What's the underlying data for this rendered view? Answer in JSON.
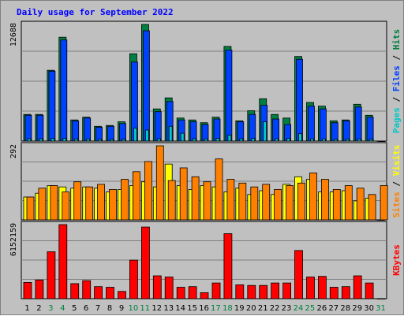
{
  "chart_data": {
    "type": "bar",
    "title": "Daily usage for September 2022",
    "categories": [
      "1",
      "2",
      "3",
      "4",
      "5",
      "6",
      "7",
      "8",
      "9",
      "10",
      "11",
      "12",
      "13",
      "14",
      "15",
      "16",
      "17",
      "18",
      "19",
      "20",
      "21",
      "22",
      "23",
      "24",
      "25",
      "26",
      "27",
      "28",
      "29",
      "30",
      "31"
    ],
    "weekend_days": [
      "3",
      "4",
      "10",
      "11",
      "17",
      "18",
      "24",
      "25",
      "31"
    ],
    "grid": true,
    "panels": [
      {
        "name": "hits-files-pages",
        "axis_label_parts": [
          "Pages",
          "Files",
          "Hits"
        ],
        "axis_label_colors": [
          "#00c8c8",
          "#0040ff",
          "#008040"
        ],
        "ymax": 12688,
        "ymax_label": "12688",
        "series": [
          {
            "name": "Hits",
            "color": "#008040",
            "values": [
              2900,
              2900,
              7700,
              11300,
              2300,
              2600,
              1600,
              1700,
              2100,
              9500,
              12688,
              3500,
              4700,
              2500,
              2300,
              2000,
              2600,
              10300,
              2200,
              3300,
              4600,
              2900,
              2500,
              9200,
              4200,
              3800,
              2200,
              2300,
              4000,
              2800,
              0
            ]
          },
          {
            "name": "Files",
            "color": "#0040ff",
            "values": [
              2800,
              2800,
              7600,
              11000,
              2200,
              2500,
              1500,
              1600,
              1900,
              8600,
              12000,
              3200,
              4300,
              2300,
              2100,
              1800,
              2400,
              9900,
              2100,
              2900,
              3900,
              2400,
              1800,
              8900,
              3800,
              3500,
              2000,
              2200,
              3700,
              2600,
              0
            ]
          },
          {
            "name": "Pages",
            "color": "#00c8c8",
            "values": [
              250,
              250,
              280,
              280,
              230,
              230,
              180,
              180,
              200,
              1400,
              1200,
              250,
              1600,
              850,
              250,
              220,
              300,
              650,
              250,
              300,
              2100,
              250,
              280,
              800,
              250,
              230,
              180,
              200,
              220,
              200,
              0
            ]
          }
        ]
      },
      {
        "name": "visits-sites",
        "axis_label_parts": [
          "Sites",
          "Visits"
        ],
        "axis_label_colors": [
          "#ff8000",
          "#ffff00"
        ],
        "ymax": 292,
        "ymax_label": "292",
        "series": [
          {
            "name": "Visits",
            "color": "#ffff00",
            "values": [
              90,
              105,
              135,
              130,
              125,
              130,
              125,
              110,
              120,
              135,
              150,
              130,
              220,
              135,
              120,
              135,
              130,
              110,
              125,
              100,
              115,
              100,
              140,
              170,
              160,
              110,
              110,
              115,
              75,
              85,
              0
            ]
          },
          {
            "name": "Sites",
            "color": "#ff8000",
            "values": [
              90,
              125,
              135,
              110,
              150,
              130,
              140,
              120,
              160,
              190,
              230,
              292,
              155,
              205,
              170,
              150,
              240,
              160,
              145,
              130,
              140,
              120,
              135,
              145,
              185,
              160,
              120,
              135,
              125,
              100,
              135
            ]
          }
        ]
      },
      {
        "name": "kbytes",
        "axis_label_parts": [
          "KBytes"
        ],
        "axis_label_colors": [
          "#ff0000"
        ],
        "ymax": 6152159,
        "ymax_label": "6152159",
        "series": [
          {
            "name": "KBytes",
            "color": "#ff0000",
            "values": [
              1350000,
              1550000,
              3900000,
              6152159,
              1250000,
              1500000,
              1000000,
              950000,
              600000,
              3200000,
              5950000,
              1900000,
              1800000,
              950000,
              1000000,
              500000,
              1300000,
              5400000,
              1150000,
              1100000,
              1100000,
              1300000,
              1300000,
              4000000,
              1800000,
              1850000,
              950000,
              1000000,
              1900000,
              1300000,
              0
            ]
          }
        ]
      }
    ]
  }
}
